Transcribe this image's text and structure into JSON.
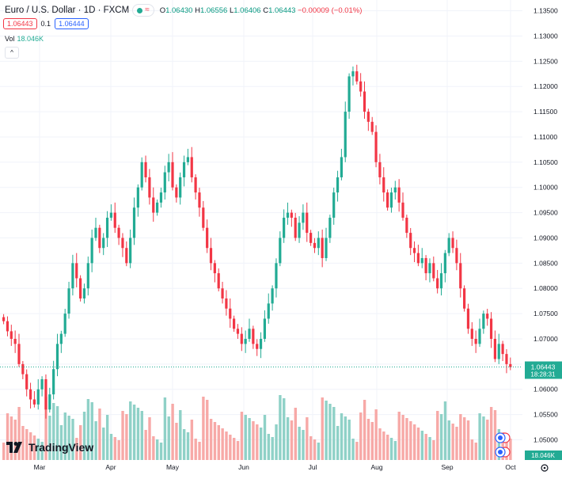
{
  "header": {
    "symbol": "Euro / U.S. Dollar · 1D · FXCM",
    "eq_icon": "≈",
    "o_label": "O",
    "o_value": "1.06430",
    "h_label": "H",
    "h_value": "1.06556",
    "l_label": "L",
    "l_value": "1.06406",
    "c_label": "C",
    "c_value": "1.06443",
    "change": "−0.00009 (−0.01%)"
  },
  "trade": {
    "sell_price": "1.06443",
    "spread": "0.1",
    "buy_price": "1.06444"
  },
  "volume": {
    "label": "Vol",
    "value": "18.046K"
  },
  "collapse_icon": "^",
  "logo_text": "TradingView",
  "price_badge": {
    "price": "1.06443",
    "countdown": "18:28:31"
  },
  "volume_badge": "18.046K",
  "settings_icon": "gear-icon",
  "colors": {
    "up": "#22ab94",
    "down": "#f23645",
    "up_vol": "#8fd1c7",
    "down_vol": "#f7a9a7",
    "grid": "#f0f3fa"
  },
  "chart_data": {
    "type": "candlestick",
    "symbol": "EURUSD",
    "timeframe": "1D",
    "y_ticks": [
      "1.13500",
      "1.13000",
      "1.12500",
      "1.12000",
      "1.11500",
      "1.11000",
      "1.10500",
      "1.10000",
      "1.09500",
      "1.09000",
      "1.08500",
      "1.08000",
      "1.07500",
      "1.07000",
      "1.06500",
      "1.06000",
      "1.05500",
      "1.05000"
    ],
    "ylim": [
      1.046,
      1.1365
    ],
    "x_labels": [
      "Mar",
      "Apr",
      "May",
      "Jun",
      "Jul",
      "Aug",
      "Sep",
      "Oct"
    ],
    "last_price": 1.06443,
    "close_series": [
      1.0735,
      1.0715,
      1.07,
      1.069,
      1.065,
      1.063,
      1.06,
      1.058,
      1.057,
      1.06,
      1.062,
      1.056,
      1.059,
      1.064,
      1.069,
      1.071,
      1.075,
      1.08,
      1.085,
      1.082,
      1.078,
      1.08,
      1.085,
      1.09,
      1.092,
      1.088,
      1.09,
      1.094,
      1.095,
      1.092,
      1.09,
      1.088,
      1.085,
      1.09,
      1.096,
      1.1,
      1.105,
      1.102,
      1.098,
      1.095,
      1.097,
      1.099,
      1.103,
      1.105,
      1.1,
      1.098,
      1.102,
      1.105,
      1.106,
      1.102,
      1.099,
      1.096,
      1.092,
      1.088,
      1.085,
      1.083,
      1.08,
      1.078,
      1.076,
      1.074,
      1.072,
      1.071,
      1.069,
      1.07,
      1.072,
      1.069,
      1.068,
      1.07,
      1.074,
      1.077,
      1.08,
      1.085,
      1.09,
      1.094,
      1.095,
      1.094,
      1.09,
      1.093,
      1.095,
      1.091,
      1.089,
      1.088,
      1.09,
      1.086,
      1.09,
      1.094,
      1.099,
      1.102,
      1.106,
      1.115,
      1.122,
      1.123,
      1.121,
      1.119,
      1.115,
      1.113,
      1.111,
      1.105,
      1.102,
      1.099,
      1.096,
      1.099,
      1.1,
      1.097,
      1.094,
      1.091,
      1.088,
      1.087,
      1.085,
      1.086,
      1.083,
      1.085,
      1.082,
      1.08,
      1.083,
      1.087,
      1.09,
      1.088,
      1.085,
      1.08,
      1.076,
      1.072,
      1.07,
      1.069,
      1.072,
      1.075,
      1.074,
      1.07,
      1.066,
      1.069,
      1.067,
      1.065,
      1.0644
    ]
  }
}
